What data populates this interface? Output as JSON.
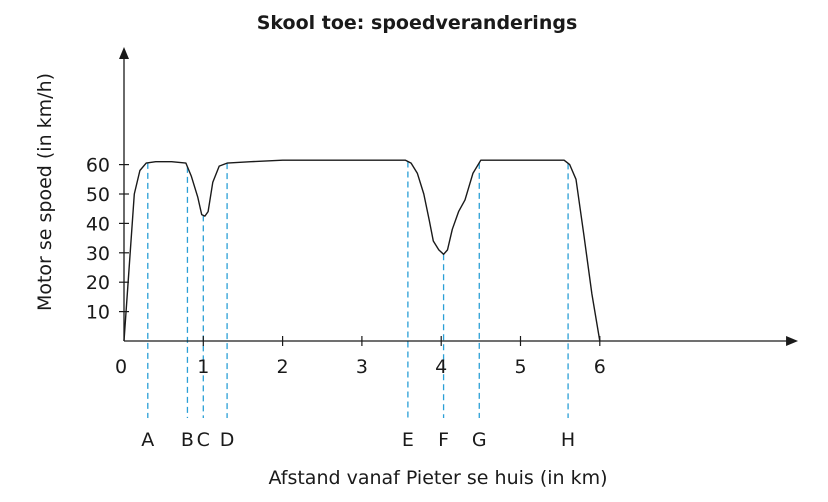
{
  "chart_data": {
    "type": "line",
    "title": "Skool toe: spoedveranderings",
    "xlabel": "Afstand vanaf Pieter se huis (in km)",
    "ylabel": "Motor se spoed (in km/h)",
    "xlim": [
      0,
      8.5
    ],
    "ylim": [
      0,
      100
    ],
    "x_ticks": [
      "0",
      "1",
      "2",
      "3",
      "4",
      "5",
      "6"
    ],
    "y_ticks": [
      "10",
      "20",
      "30",
      "40",
      "50",
      "60"
    ],
    "grid": false,
    "series": [
      {
        "x": [
          0,
          0.13,
          0.2,
          0.28,
          0.4,
          0.6,
          0.78,
          0.85,
          0.93,
          0.98,
          1.02,
          1.06,
          1.12,
          1.2,
          1.3,
          1.6,
          2.0,
          2.5,
          3.0,
          3.55,
          3.62,
          3.7,
          3.78,
          3.85,
          3.9,
          3.97,
          4.03,
          4.08,
          4.14,
          4.22,
          4.3,
          4.4,
          4.5,
          4.8,
          5.2,
          5.55,
          5.62,
          5.7,
          5.8,
          5.9,
          6.0
        ],
        "y": [
          0,
          50,
          58,
          60.5,
          61,
          61,
          60.5,
          56,
          49,
          43,
          42.5,
          44,
          54,
          59.5,
          60.5,
          61,
          61.5,
          61.5,
          61.5,
          61.5,
          60.5,
          57,
          50,
          41,
          34,
          31,
          29.5,
          31,
          38,
          44,
          48,
          57,
          61.5,
          61.5,
          61.5,
          61.5,
          60,
          55,
          36,
          16,
          0
        ]
      }
    ],
    "markers": [
      {
        "label": "A",
        "x": 0.3
      },
      {
        "label": "B",
        "x": 0.8
      },
      {
        "label": "C",
        "x": 1.0
      },
      {
        "label": "D",
        "x": 1.3
      },
      {
        "label": "E",
        "x": 3.58
      },
      {
        "label": "F",
        "x": 4.03
      },
      {
        "label": "G",
        "x": 4.48
      },
      {
        "label": "H",
        "x": 5.6
      }
    ],
    "colors": {
      "line": "#1a1a1a",
      "marker_line": "#2a9fd6",
      "axis": "#1a1a1a"
    }
  }
}
